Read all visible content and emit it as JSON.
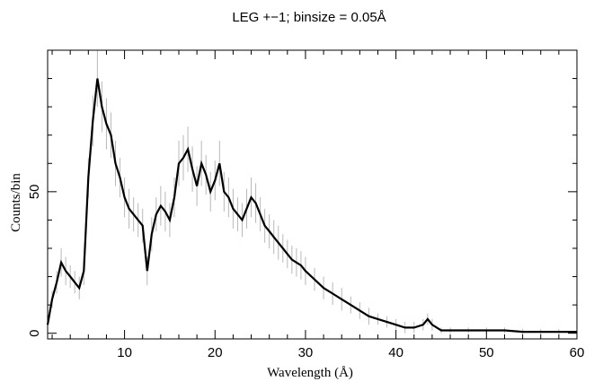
{
  "chart_data": {
    "type": "line",
    "title": "LEG +−1; binsize = 0.05Å",
    "xlabel": "Wavelength (Å)",
    "ylabel": "Counts/bin",
    "xlim": [
      1.5,
      60
    ],
    "ylim": [
      -2,
      100
    ],
    "xticks": [
      10,
      20,
      30,
      40,
      50,
      60
    ],
    "xtick_labels": [
      "10",
      "20",
      "30",
      "40",
      "50",
      "60"
    ],
    "yticks": [
      0,
      50
    ],
    "ytick_labels": [
      "0",
      "50"
    ],
    "grid": false,
    "legend": "none",
    "series": [
      {
        "color": "#000000",
        "error_color": "#b8b8b8",
        "x": [
          1.5,
          2.0,
          2.5,
          3.0,
          3.5,
          4.0,
          4.5,
          5.0,
          5.5,
          6.0,
          6.5,
          7.0,
          7.5,
          8.0,
          8.5,
          9.0,
          9.5,
          10.0,
          10.5,
          11.0,
          11.5,
          12.0,
          12.5,
          13.0,
          13.5,
          14.0,
          14.5,
          15.0,
          15.5,
          16.0,
          16.5,
          17.0,
          17.5,
          18.0,
          18.5,
          19.0,
          19.5,
          20.0,
          20.5,
          21.0,
          21.5,
          22.0,
          22.5,
          23.0,
          23.5,
          24.0,
          24.5,
          25.0,
          25.5,
          26.0,
          26.5,
          27.0,
          27.5,
          28.0,
          28.5,
          29.0,
          29.5,
          30.0,
          31.0,
          32.0,
          33.0,
          34.0,
          35.0,
          36.0,
          37.0,
          38.0,
          39.0,
          40.0,
          41.0,
          42.0,
          43.0,
          43.5,
          44.0,
          45.0,
          46.0,
          48.0,
          50.0,
          52.0,
          54.0,
          56.0,
          58.0,
          60.0
        ],
        "y": [
          3,
          12,
          18,
          25,
          22,
          20,
          18,
          16,
          22,
          55,
          75,
          90,
          80,
          74,
          70,
          60,
          55,
          48,
          44,
          42,
          40,
          38,
          22,
          35,
          42,
          45,
          43,
          40,
          48,
          60,
          62,
          65,
          58,
          52,
          60,
          56,
          50,
          54,
          60,
          50,
          48,
          44,
          42,
          40,
          44,
          48,
          46,
          42,
          38,
          36,
          34,
          32,
          30,
          28,
          26,
          25,
          24,
          22,
          19,
          16,
          14,
          12,
          10,
          8,
          6,
          5,
          4,
          3,
          2,
          2,
          3,
          5,
          3,
          1,
          1,
          1,
          1,
          1,
          0.5,
          0.5,
          0.5,
          0.5
        ],
        "err": [
          2,
          3,
          4,
          5,
          5,
          4,
          4,
          4,
          5,
          7,
          9,
          10,
          9,
          9,
          8,
          8,
          7,
          7,
          7,
          6,
          6,
          6,
          5,
          6,
          6,
          7,
          7,
          6,
          7,
          8,
          8,
          8,
          8,
          7,
          8,
          7,
          7,
          7,
          8,
          7,
          7,
          7,
          6,
          6,
          7,
          7,
          7,
          6,
          6,
          6,
          6,
          6,
          5,
          5,
          5,
          5,
          5,
          5,
          4,
          4,
          4,
          4,
          3,
          3,
          3,
          2,
          2,
          2,
          2,
          2,
          2,
          2,
          2,
          1,
          1,
          1,
          1,
          1,
          1,
          1,
          1,
          1
        ]
      }
    ]
  }
}
